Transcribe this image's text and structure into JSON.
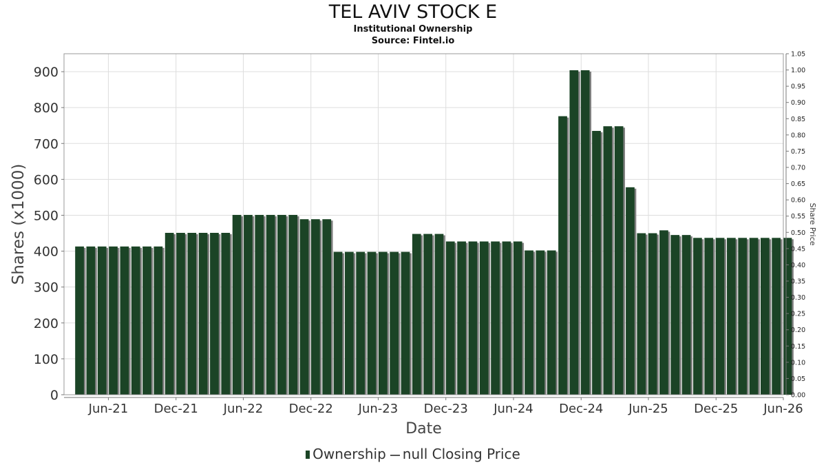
{
  "title": "TEL AVIV STOCK E",
  "subtitle": "Institutional Ownership",
  "source": "Source: Fintel.io",
  "colors": {
    "bar": "#1b4426",
    "bar_shadow": "#808080",
    "grid": "#dddddd"
  },
  "chart_data": {
    "type": "bar",
    "xlabel": "Date",
    "ylabel": "Shares (x1000)",
    "y2label": "Share Price",
    "ylim": [
      0,
      950
    ],
    "y2lim": [
      0,
      1.05
    ],
    "x_range": [
      "2021-02-01",
      "2026-06-01"
    ],
    "yticks": [
      "0",
      "100",
      "200",
      "300",
      "400",
      "500",
      "600",
      "700",
      "800",
      "900"
    ],
    "y2ticks": [
      "0.00",
      "0.05",
      "0.10",
      "0.15",
      "0.20",
      "0.25",
      "0.30",
      "0.35",
      "0.40",
      "0.45",
      "0.50",
      "0.55",
      "0.60",
      "0.65",
      "0.70",
      "0.75",
      "0.80",
      "0.85",
      "0.90",
      "0.95",
      "1.00",
      "1.05"
    ],
    "xticks": [
      {
        "label": "Jun-21",
        "date": "2021-06-01"
      },
      {
        "label": "Dec-21",
        "date": "2021-12-01"
      },
      {
        "label": "Jun-22",
        "date": "2022-06-01"
      },
      {
        "label": "Dec-22",
        "date": "2022-12-01"
      },
      {
        "label": "Jun-23",
        "date": "2023-06-01"
      },
      {
        "label": "Dec-23",
        "date": "2023-12-01"
      },
      {
        "label": "Jun-24",
        "date": "2024-06-01"
      },
      {
        "label": "Dec-24",
        "date": "2024-12-01"
      },
      {
        "label": "Jun-25",
        "date": "2025-06-01"
      },
      {
        "label": "Dec-25",
        "date": "2025-12-01"
      },
      {
        "label": "Jun-26",
        "date": "2026-06-01"
      }
    ],
    "legend": [
      {
        "name": "Ownership",
        "kind": "bar"
      },
      {
        "name": "null Closing Price",
        "kind": "line"
      }
    ],
    "series": [
      {
        "name": "Ownership",
        "x_start": "2021-03-15",
        "x_step_days": 30.4,
        "values": [
          413,
          413,
          413,
          413,
          413,
          413,
          413,
          413,
          451,
          451,
          451,
          451,
          451,
          451,
          501,
          501,
          501,
          501,
          501,
          501,
          489,
          489,
          489,
          398,
          398,
          398,
          398,
          398,
          398,
          398,
          448,
          448,
          448,
          427,
          427,
          427,
          427,
          427,
          427,
          427,
          402,
          402,
          402,
          776,
          904,
          904,
          735,
          748,
          748,
          578,
          450,
          450,
          458,
          445,
          445,
          437,
          437,
          437,
          437,
          437,
          437,
          437,
          437,
          437
        ]
      }
    ]
  }
}
